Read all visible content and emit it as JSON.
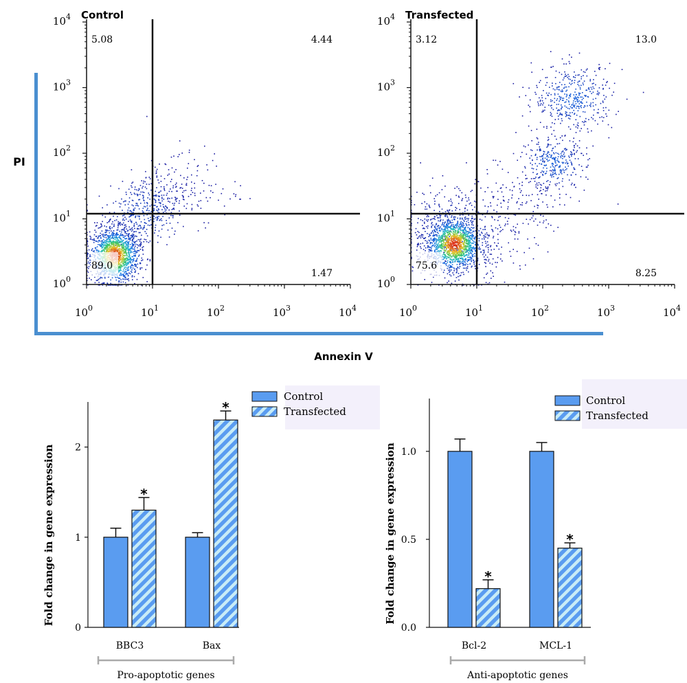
{
  "figure": {
    "pi_label": "PI",
    "annexin_label": "Annexin V",
    "bar_ylabel": "Fold change in gene expression"
  },
  "colors": {
    "bar_fill": "#5a9cf0",
    "hatch_light": "#c8ecf7",
    "bracket": "#aaaaaa",
    "frame_blue": "#4a8fd0",
    "legend_bg": "#f3f0fb"
  },
  "chart_data": [
    {
      "type": "scatter",
      "title": "Control",
      "log_scale": true,
      "xlim": [
        1,
        10000
      ],
      "ylim": [
        1,
        10000
      ],
      "x_ticks": [
        "10",
        "10",
        "10",
        "10",
        "10"
      ],
      "x_exponents": [
        "0",
        "1",
        "2",
        "3",
        "4"
      ],
      "y_ticks": [
        "10",
        "10",
        "10",
        "10",
        "10"
      ],
      "y_exponents": [
        "0",
        "1",
        "2",
        "3",
        "4"
      ],
      "gates": {
        "x": 10,
        "y": 12
      },
      "quadrants": {
        "upper_left": "5.08",
        "upper_right": "4.44",
        "lower_left": "89.0",
        "lower_right": "1.47"
      }
    },
    {
      "type": "scatter",
      "title": "Transfected",
      "log_scale": true,
      "xlim": [
        1,
        10000
      ],
      "ylim": [
        1,
        10000
      ],
      "x_ticks": [
        "10",
        "10",
        "10",
        "10",
        "10"
      ],
      "x_exponents": [
        "0",
        "1",
        "2",
        "3",
        "4"
      ],
      "y_ticks": [
        "10",
        "10",
        "10",
        "10",
        "10"
      ],
      "y_exponents": [
        "0",
        "1",
        "2",
        "3",
        "4"
      ],
      "gates": {
        "x": 10,
        "y": 12
      },
      "quadrants": {
        "upper_left": "3.12",
        "upper_right": "13.0",
        "lower_left": "75.6",
        "lower_right": "8.25"
      }
    },
    {
      "type": "bar",
      "categories": [
        "BBC3",
        "Bax"
      ],
      "group_label": "Pro-apoptotic genes",
      "ylim": [
        0,
        2.5
      ],
      "y_ticks": [
        "0",
        "1",
        "2"
      ],
      "ylabel": "Fold change in gene expression",
      "series": [
        {
          "name": "Control",
          "values": [
            1.0,
            1.0
          ],
          "errors": [
            0.1,
            0.05
          ]
        },
        {
          "name": "Transfected",
          "values": [
            1.3,
            2.3
          ],
          "errors": [
            0.14,
            0.1
          ]
        }
      ],
      "significance": [
        "*",
        "*"
      ]
    },
    {
      "type": "bar",
      "categories": [
        "Bcl-2",
        "MCL-1"
      ],
      "group_label": "Anti-apoptotic genes",
      "ylim": [
        0,
        1.3
      ],
      "y_ticks": [
        "0.0",
        "0.5",
        "1.0"
      ],
      "ylabel": "Fold change in gene expression",
      "series": [
        {
          "name": "Control",
          "values": [
            1.0,
            1.0
          ],
          "errors": [
            0.07,
            0.05
          ]
        },
        {
          "name": "Transfected",
          "values": [
            0.22,
            0.45
          ],
          "errors": [
            0.05,
            0.03
          ]
        }
      ],
      "significance": [
        "*",
        "*"
      ]
    }
  ]
}
